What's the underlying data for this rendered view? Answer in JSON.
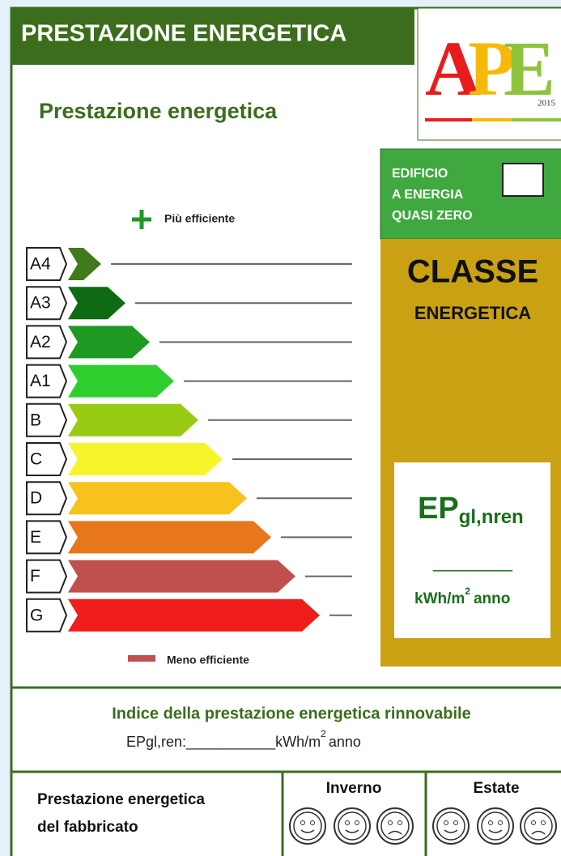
{
  "header": {
    "title": "PRESTAZIONE ENERGETICA"
  },
  "logo": {
    "letters": [
      "A",
      "P",
      "E"
    ],
    "year": "2015"
  },
  "scale": {
    "title": "Prestazione energetica",
    "top_label": "Più efficiente",
    "bottom_label": "Meno efficiente",
    "classes": [
      {
        "label": "A4",
        "color": "#3f7a1c"
      },
      {
        "label": "A3",
        "color": "#0f6a14"
      },
      {
        "label": "A2",
        "color": "#1e9a22"
      },
      {
        "label": "A1",
        "color": "#2fce2f"
      },
      {
        "label": "B",
        "color": "#98cc12"
      },
      {
        "label": "C",
        "color": "#f6f52c"
      },
      {
        "label": "D",
        "color": "#f8c21d"
      },
      {
        "label": "E",
        "color": "#e8771b"
      },
      {
        "label": "F",
        "color": "#c0504e"
      },
      {
        "label": "G",
        "color": "#f01d1d"
      }
    ]
  },
  "nzeb": {
    "lines": [
      "EDIFICIO",
      "A ENERGIA",
      "QUASI ZERO"
    ]
  },
  "class_panel": {
    "title": "CLASSE",
    "subtitle": "ENERGETICA",
    "ep": "EP",
    "ep_sub": "gl,nren",
    "blank": "________",
    "unit": "kWh/m",
    "unit_sup": "2",
    "unit_tail": "anno"
  },
  "renewable": {
    "title": "Indice della prestazione energetica rinnovabile",
    "label": "EPgl,ren:",
    "blank": "___________",
    "unit": "kWh/m",
    "unit_sup": "2",
    "unit_tail": "anno"
  },
  "building": {
    "label_lines": [
      "Prestazione energetica",
      "del fabbricato"
    ],
    "winter": "Inverno",
    "summer": "Estate"
  }
}
